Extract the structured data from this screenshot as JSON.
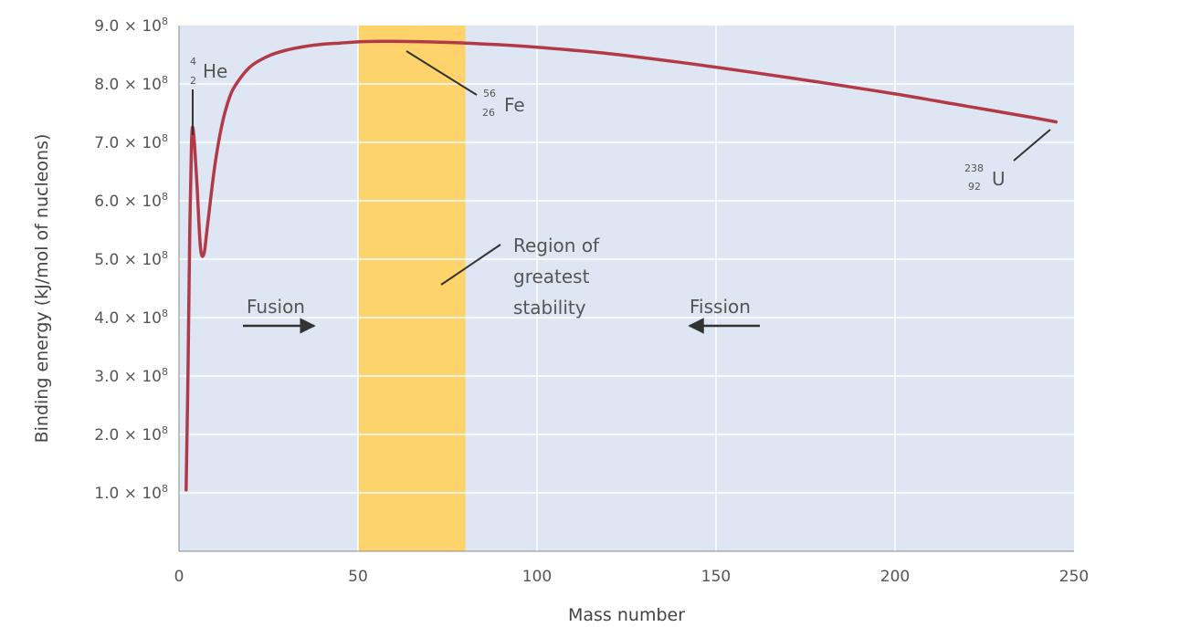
{
  "chart_data": {
    "type": "line",
    "title": "",
    "xlabel": "Mass number",
    "ylabel": "Binding energy (kJ/mol of nucleons)",
    "xlim": [
      0,
      250
    ],
    "ylim": [
      0,
      900000000.0
    ],
    "grid": true,
    "x_ticks": [
      "0",
      "50",
      "100",
      "150",
      "200",
      "250"
    ],
    "y_ticks": [
      {
        "mantissa": "1.0",
        "times": "×",
        "base": "10",
        "exp": "8"
      },
      {
        "mantissa": "2.0",
        "times": "×",
        "base": "10",
        "exp": "8"
      },
      {
        "mantissa": "3.0",
        "times": "×",
        "base": "10",
        "exp": "8"
      },
      {
        "mantissa": "4.0",
        "times": "×",
        "base": "10",
        "exp": "8"
      },
      {
        "mantissa": "5.0",
        "times": "×",
        "base": "10",
        "exp": "8"
      },
      {
        "mantissa": "6.0",
        "times": "×",
        "base": "10",
        "exp": "8"
      },
      {
        "mantissa": "7.0",
        "times": "×",
        "base": "10",
        "exp": "8"
      },
      {
        "mantissa": "8.0",
        "times": "×",
        "base": "10",
        "exp": "8"
      },
      {
        "mantissa": "9.0",
        "times": "×",
        "base": "10",
        "exp": "8"
      }
    ],
    "series": [
      {
        "x": [
          2,
          2.5,
          3,
          3.5,
          4,
          5,
          6,
          7,
          8,
          10,
          12,
          14,
          16,
          20,
          25,
          30,
          35,
          40,
          45,
          50,
          56,
          60,
          70,
          80,
          90,
          100,
          120,
          140,
          160,
          180,
          200,
          220,
          238,
          245
        ],
        "y": [
          105000000.0,
          300000000.0,
          550000000.0,
          700000000.0,
          720000000.0,
          630000000.0,
          520000000.0,
          510000000.0,
          560000000.0,
          660000000.0,
          730000000.0,
          775000000.0,
          800000000.0,
          830000000.0,
          848000000.0,
          858000000.0,
          864000000.0,
          868000000.0,
          870000000.0,
          872000000.0,
          873000000.0,
          873000000.0,
          872000000.0,
          870000000.0,
          867000000.0,
          863000000.0,
          852000000.0,
          837000000.0,
          820000000.0,
          802000000.0,
          783000000.0,
          762000000.0,
          743000000.0,
          735000000.0
        ],
        "color": "#b23a48"
      }
    ],
    "stability_band": {
      "x_start": 50,
      "x_end": 80,
      "color": "#ffd36b"
    },
    "plot_background": "#dfe6f3",
    "gridline_color": "#ffffff",
    "annotations": {
      "he": {
        "mass": "4",
        "atomic": "2",
        "symbol": "He"
      },
      "fe": {
        "mass": "56",
        "atomic": "26",
        "symbol": "Fe"
      },
      "u": {
        "mass": "238",
        "atomic": "92",
        "symbol": "U"
      },
      "region": [
        "Region of",
        "greatest",
        "stability"
      ],
      "fusion": "Fusion",
      "fission": "Fission"
    }
  }
}
